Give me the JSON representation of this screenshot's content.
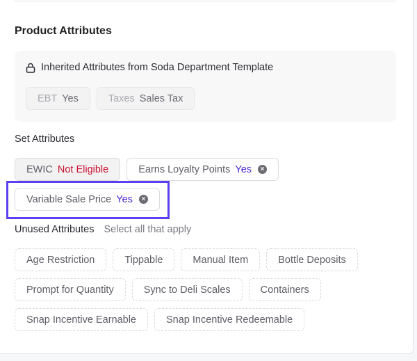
{
  "section_title": "Product Attributes",
  "inherited": {
    "heading": "Inherited Attributes from Soda Department Template",
    "icon": "lock-icon",
    "chips": [
      {
        "key": "EBT",
        "value": "Yes"
      },
      {
        "key": "Taxes",
        "value": "Sales Tax"
      }
    ]
  },
  "set_attributes": {
    "heading": "Set Attributes",
    "chips": [
      {
        "key": "EWIC",
        "value": "Not Eligible",
        "value_color": "#c8102e"
      },
      {
        "key": "Earns Loyalty Points",
        "value": "Yes",
        "value_color": "#4f2bd8"
      },
      {
        "key": "Variable Sale Price",
        "value": "Yes",
        "value_color": "#4f2bd8",
        "highlighted": true
      }
    ]
  },
  "unused": {
    "heading": "Unused Attributes",
    "hint": "Select all that apply",
    "items": [
      "Age Restriction",
      "Tippable",
      "Manual Item",
      "Bottle Deposits",
      "Prompt for Quantity",
      "Sync to Deli Scales",
      "Containers",
      "Snap Incentive Earnable",
      "Snap Incentive Redeemable"
    ]
  },
  "colors": {
    "highlight": "#5b3ff0",
    "accent": "#4f2bd8",
    "error": "#c8102e"
  }
}
